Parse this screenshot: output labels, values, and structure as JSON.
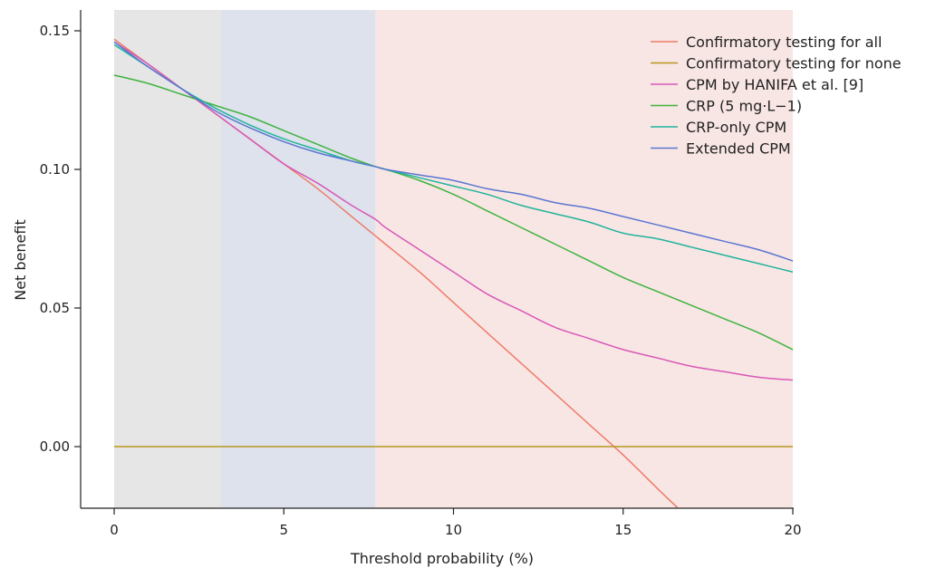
{
  "chart_data": {
    "type": "line",
    "title": "",
    "xlabel": "Threshold probability (%)",
    "ylabel": "Net benefit",
    "xlim": [
      -1,
      20
    ],
    "ylim": [
      -0.022,
      0.158
    ],
    "x_ticks": [
      "0",
      "5",
      "10",
      "15",
      "20"
    ],
    "y_ticks": [
      "0.00",
      "0.05",
      "0.10",
      "0.15"
    ],
    "x_tick_values": [
      0,
      5,
      10,
      15,
      20
    ],
    "y_tick_values": [
      0,
      0.05,
      0.1,
      0.15
    ],
    "grid": false,
    "legend_position": "top-right",
    "shaded_regions": [
      {
        "x0": 0,
        "x1": 3.15,
        "color": "#e6e6e6"
      },
      {
        "x0": 3.15,
        "x1": 7.7,
        "color": "#dde2ec"
      },
      {
        "x0": 7.7,
        "x1": 20,
        "color": "#f8e6e4"
      }
    ],
    "x": [
      0,
      1,
      2,
      3,
      4,
      5,
      6,
      7,
      7.7,
      8,
      9,
      10,
      11,
      12,
      13,
      14,
      15,
      16,
      16.6
    ],
    "series": [
      {
        "name": "Confirmatory testing for all",
        "color": "#ef7b68",
        "x": [
          0,
          1,
          2,
          3,
          4,
          5,
          6,
          7,
          7.7,
          8,
          9,
          10,
          11,
          12,
          13,
          14,
          15,
          16,
          16.6
        ],
        "values": [
          0.147,
          0.138,
          0.129,
          0.12,
          0.111,
          0.102,
          0.093,
          0.083,
          0.076,
          0.073,
          0.063,
          0.052,
          0.041,
          0.03,
          0.019,
          0.008,
          -0.003,
          -0.015,
          -0.022
        ]
      },
      {
        "name": "Confirmatory testing for none",
        "color": "#b8971e",
        "x": [
          0,
          20
        ],
        "values": [
          0.0,
          0.0
        ]
      },
      {
        "name": "CPM by HANIFA et al. [9]",
        "color": "#d958b8",
        "x": [
          0,
          1,
          2,
          3,
          4,
          5,
          6,
          7,
          7.7,
          8,
          9,
          10,
          11,
          12,
          13,
          14,
          15,
          16,
          17,
          18,
          19,
          20
        ],
        "values": [
          0.146,
          0.138,
          0.129,
          0.12,
          0.111,
          0.102,
          0.095,
          0.087,
          0.082,
          0.079,
          0.071,
          0.063,
          0.055,
          0.049,
          0.043,
          0.039,
          0.035,
          0.032,
          0.029,
          0.027,
          0.025,
          0.024
        ]
      },
      {
        "name": "CRP (5 mg·L−1)",
        "color": "#3fb33f",
        "x": [
          0,
          1,
          2,
          3,
          4,
          5,
          6,
          7,
          7.7,
          8,
          9,
          10,
          11,
          12,
          13,
          14,
          15,
          16,
          17,
          18,
          19,
          20
        ],
        "values": [
          0.134,
          0.131,
          0.127,
          0.123,
          0.119,
          0.114,
          0.109,
          0.104,
          0.101,
          0.1,
          0.096,
          0.091,
          0.085,
          0.079,
          0.073,
          0.067,
          0.061,
          0.056,
          0.051,
          0.046,
          0.041,
          0.035
        ]
      },
      {
        "name": "CRP-only CPM",
        "color": "#22b39b",
        "x": [
          0,
          1,
          2,
          3,
          4,
          5,
          6,
          7,
          7.7,
          8,
          9,
          10,
          11,
          12,
          13,
          14,
          15,
          16,
          17,
          18,
          19,
          20
        ],
        "values": [
          0.145,
          0.137,
          0.129,
          0.122,
          0.116,
          0.111,
          0.107,
          0.103,
          0.101,
          0.1,
          0.097,
          0.094,
          0.091,
          0.087,
          0.084,
          0.081,
          0.077,
          0.075,
          0.072,
          0.069,
          0.066,
          0.063
        ]
      },
      {
        "name": "Extended CPM",
        "color": "#5b76d1",
        "x": [
          0,
          1,
          2,
          3,
          4,
          5,
          6,
          7,
          7.7,
          8,
          9,
          10,
          11,
          12,
          13,
          14,
          15,
          16,
          17,
          18,
          19,
          20
        ],
        "values": [
          0.146,
          0.137,
          0.129,
          0.121,
          0.115,
          0.11,
          0.106,
          0.103,
          0.101,
          0.1,
          0.098,
          0.096,
          0.093,
          0.091,
          0.088,
          0.086,
          0.083,
          0.08,
          0.077,
          0.074,
          0.071,
          0.067
        ]
      }
    ]
  }
}
